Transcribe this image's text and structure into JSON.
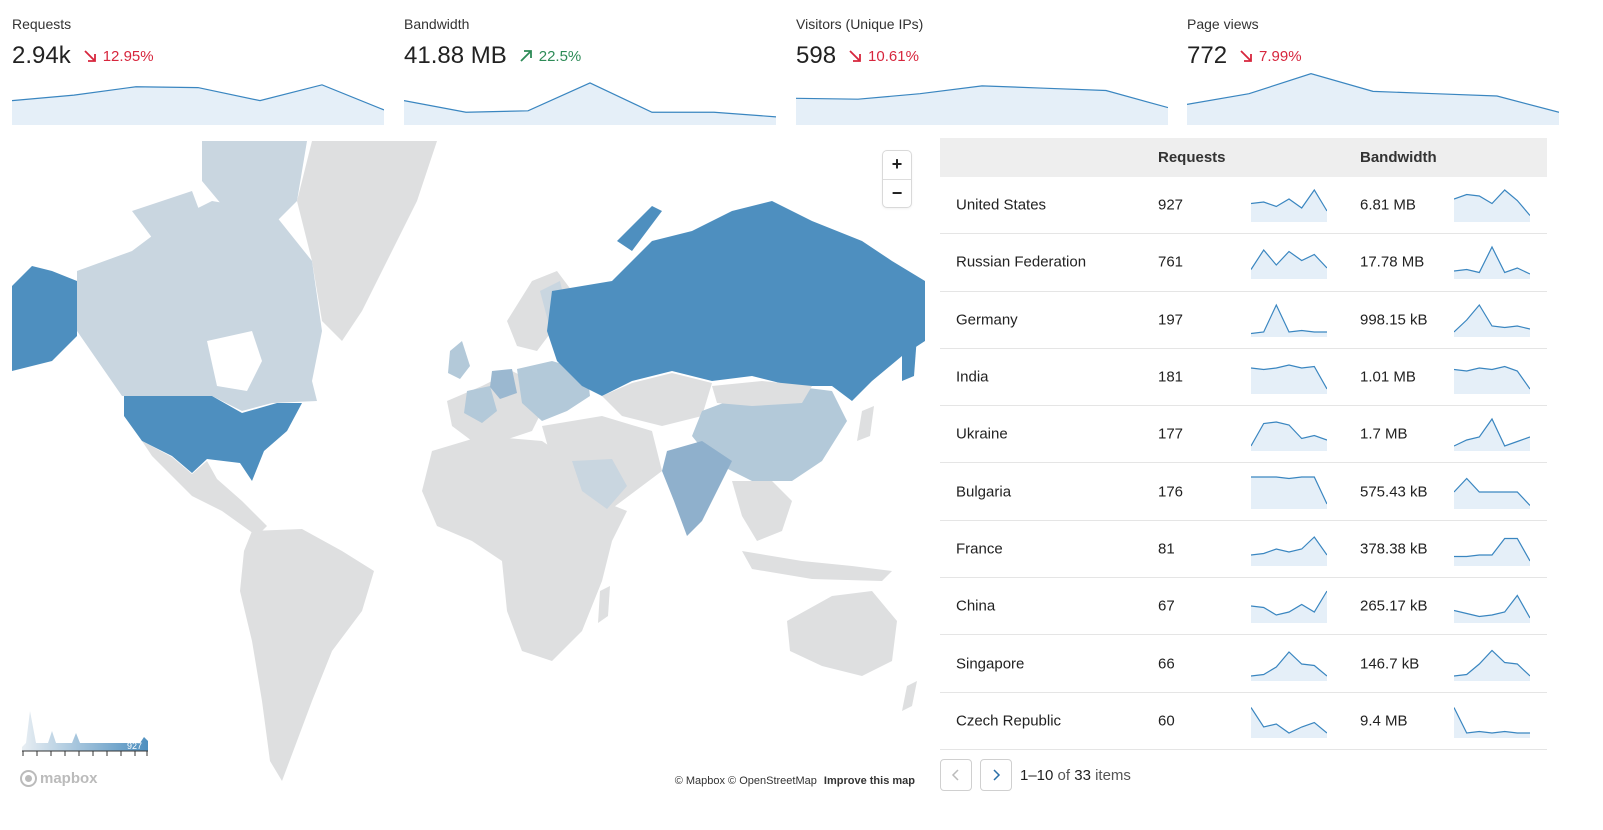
{
  "stats": [
    {
      "label": "Requests",
      "value": "2.94k",
      "change": "12.95%",
      "direction": "down",
      "spark": [
        0.4,
        0.52,
        0.7,
        0.68,
        0.4,
        0.74,
        0.2
      ]
    },
    {
      "label": "Bandwidth",
      "value": "41.88 MB",
      "change": "22.5%",
      "direction": "up",
      "spark": [
        0.4,
        0.15,
        0.18,
        0.78,
        0.15,
        0.15,
        0.05
      ]
    },
    {
      "label": "Visitors (Unique IPs)",
      "value": "598",
      "change": "10.61%",
      "direction": "down",
      "spark": [
        0.45,
        0.43,
        0.55,
        0.72,
        0.67,
        0.62,
        0.25
      ]
    },
    {
      "label": "Page views",
      "value": "772",
      "change": "7.99%",
      "direction": "down",
      "spark": [
        0.32,
        0.55,
        0.98,
        0.6,
        0.55,
        0.5,
        0.15
      ]
    }
  ],
  "colors": {
    "accent": "#3a86c0",
    "spark_fill": "#e5eff8",
    "country_max": "#4e8fbf",
    "country_mid": "#b3c9d9",
    "country_low": "#c9d6e0",
    "country_none": "#dedfe0",
    "down": "#d7263d",
    "up": "#2e8b57"
  },
  "map": {
    "zoom_in": "+",
    "zoom_out": "−",
    "legend_max": "927",
    "logo_text": "mapbox",
    "attribution": "© Mapbox © OpenStreetMap",
    "improve_link": "Improve this map"
  },
  "table": {
    "headers": {
      "requests": "Requests",
      "bandwidth": "Bandwidth"
    },
    "rows": [
      {
        "country": "United States",
        "requests": "927",
        "bandwidth": "6.81 MB",
        "req_spark": [
          0.55,
          0.6,
          0.45,
          0.7,
          0.4,
          1.0,
          0.3
        ],
        "bw_spark": [
          0.7,
          0.85,
          0.8,
          0.55,
          1.0,
          0.65,
          0.15
        ]
      },
      {
        "country": "Russian Federation",
        "requests": "761",
        "bandwidth": "17.78 MB",
        "req_spark": [
          0.25,
          0.9,
          0.4,
          0.85,
          0.55,
          0.75,
          0.3
        ],
        "bw_spark": [
          0.2,
          0.25,
          0.15,
          1.0,
          0.15,
          0.3,
          0.1
        ]
      },
      {
        "country": "Germany",
        "requests": "197",
        "bandwidth": "998.15 kB",
        "req_spark": [
          0.05,
          0.1,
          1.0,
          0.1,
          0.15,
          0.1,
          0.1
        ],
        "bw_spark": [
          0.1,
          0.5,
          1.0,
          0.3,
          0.25,
          0.3,
          0.2
        ]
      },
      {
        "country": "India",
        "requests": "181",
        "bandwidth": "1.01 MB",
        "req_spark": [
          0.8,
          0.75,
          0.8,
          0.9,
          0.8,
          0.85,
          0.1
        ],
        "bw_spark": [
          0.75,
          0.7,
          0.8,
          0.75,
          0.85,
          0.7,
          0.1
        ]
      },
      {
        "country": "Ukraine",
        "requests": "177",
        "bandwidth": "1.7 MB",
        "req_spark": [
          0.1,
          0.85,
          0.9,
          0.8,
          0.35,
          0.45,
          0.3
        ],
        "bw_spark": [
          0.1,
          0.3,
          0.4,
          1.0,
          0.1,
          0.25,
          0.4
        ]
      },
      {
        "country": "Bulgaria",
        "requests": "176",
        "bandwidth": "575.43 kB",
        "req_spark": [
          1.0,
          1.0,
          1.0,
          0.95,
          1.0,
          1.0,
          0.1
        ],
        "bw_spark": [
          0.5,
          0.95,
          0.5,
          0.5,
          0.5,
          0.5,
          0.05
        ]
      },
      {
        "country": "France",
        "requests": "81",
        "bandwidth": "378.38 kB",
        "req_spark": [
          0.3,
          0.35,
          0.5,
          0.4,
          0.5,
          0.9,
          0.3
        ],
        "bw_spark": [
          0.25,
          0.25,
          0.3,
          0.3,
          0.85,
          0.85,
          0.1
        ]
      },
      {
        "country": "China",
        "requests": "67",
        "bandwidth": "265.17 kB",
        "req_spark": [
          0.5,
          0.45,
          0.2,
          0.3,
          0.55,
          0.3,
          1.0
        ],
        "bw_spark": [
          0.35,
          0.25,
          0.15,
          0.2,
          0.3,
          0.85,
          0.1
        ]
      },
      {
        "country": "Singapore",
        "requests": "66",
        "bandwidth": "146.7 kB",
        "req_spark": [
          0.1,
          0.15,
          0.4,
          0.9,
          0.5,
          0.45,
          0.1
        ],
        "bw_spark": [
          0.1,
          0.15,
          0.5,
          0.95,
          0.55,
          0.5,
          0.1
        ]
      },
      {
        "country": "Czech Republic",
        "requests": "60",
        "bandwidth": "9.4 MB",
        "req_spark": [
          0.95,
          0.3,
          0.4,
          0.1,
          0.3,
          0.45,
          0.1
        ],
        "bw_spark": [
          0.95,
          0.1,
          0.15,
          0.1,
          0.15,
          0.1,
          0.1
        ]
      }
    ]
  },
  "pager": {
    "range": "1–10",
    "of": "of",
    "total": "33",
    "items": "items"
  }
}
